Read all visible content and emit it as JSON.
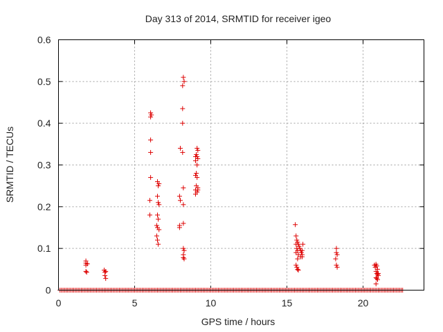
{
  "chart_data": {
    "type": "scatter",
    "title": "Day 313 of 2014, SRMTID for receiver igeo",
    "xlabel": "GPS time / hours",
    "ylabel": "SRMTID / TECUs",
    "xlim": [
      0,
      24
    ],
    "ylim": [
      0,
      0.6
    ],
    "x_ticks": [
      0,
      5,
      10,
      15,
      20
    ],
    "x_tick_labels": [
      "0",
      "5",
      "10",
      "15",
      "20"
    ],
    "y_ticks": [
      0,
      0.1,
      0.2,
      0.3,
      0.4,
      0.5,
      0.6
    ],
    "y_tick_labels": [
      "0",
      "0.1",
      "0.2",
      "0.3",
      "0.4",
      "0.5",
      "0.6"
    ],
    "grid": true,
    "marker": "+",
    "color": "#dd0000",
    "baseline": {
      "x_start": 0.1,
      "x_end": 22.6,
      "step": 0.1,
      "y": 0
    },
    "series": [
      {
        "name": "SRMTID",
        "points": [
          [
            1.8,
            0.07
          ],
          [
            1.8,
            0.065
          ],
          [
            1.8,
            0.06
          ],
          [
            1.8,
            0.045
          ],
          [
            1.85,
            0.043
          ],
          [
            1.9,
            0.063
          ],
          [
            3.0,
            0.048
          ],
          [
            3.05,
            0.043
          ],
          [
            3.05,
            0.035
          ],
          [
            3.1,
            0.028
          ],
          [
            3.1,
            0.045
          ],
          [
            6.05,
            0.425
          ],
          [
            6.05,
            0.415
          ],
          [
            6.1,
            0.42
          ],
          [
            6.05,
            0.36
          ],
          [
            6.05,
            0.33
          ],
          [
            6.05,
            0.27
          ],
          [
            6.0,
            0.215
          ],
          [
            6.0,
            0.18
          ],
          [
            6.5,
            0.26
          ],
          [
            6.55,
            0.25
          ],
          [
            6.6,
            0.255
          ],
          [
            6.5,
            0.225
          ],
          [
            6.55,
            0.21
          ],
          [
            6.6,
            0.205
          ],
          [
            6.5,
            0.18
          ],
          [
            6.55,
            0.17
          ],
          [
            6.45,
            0.155
          ],
          [
            6.5,
            0.15
          ],
          [
            6.6,
            0.145
          ],
          [
            6.45,
            0.13
          ],
          [
            6.5,
            0.12
          ],
          [
            6.55,
            0.11
          ],
          [
            8.2,
            0.51
          ],
          [
            8.25,
            0.5
          ],
          [
            8.15,
            0.49
          ],
          [
            8.15,
            0.435
          ],
          [
            8.15,
            0.4
          ],
          [
            8.0,
            0.34
          ],
          [
            8.15,
            0.33
          ],
          [
            8.2,
            0.245
          ],
          [
            7.95,
            0.225
          ],
          [
            8.0,
            0.215
          ],
          [
            8.2,
            0.205
          ],
          [
            8.2,
            0.16
          ],
          [
            7.95,
            0.155
          ],
          [
            7.95,
            0.15
          ],
          [
            8.2,
            0.1
          ],
          [
            8.25,
            0.095
          ],
          [
            8.2,
            0.085
          ],
          [
            8.2,
            0.078
          ],
          [
            8.25,
            0.075
          ],
          [
            9.1,
            0.34
          ],
          [
            9.15,
            0.335
          ],
          [
            9.0,
            0.32
          ],
          [
            9.05,
            0.325
          ],
          [
            9.1,
            0.32
          ],
          [
            9.15,
            0.315
          ],
          [
            9.0,
            0.31
          ],
          [
            9.1,
            0.3
          ],
          [
            9.05,
            0.28
          ],
          [
            9.0,
            0.275
          ],
          [
            9.1,
            0.27
          ],
          [
            9.05,
            0.25
          ],
          [
            9.15,
            0.245
          ],
          [
            9.0,
            0.24
          ],
          [
            9.1,
            0.235
          ],
          [
            9.0,
            0.23
          ],
          [
            9.15,
            0.24
          ],
          [
            15.55,
            0.157
          ],
          [
            15.6,
            0.13
          ],
          [
            15.65,
            0.12
          ],
          [
            15.7,
            0.115
          ],
          [
            15.6,
            0.11
          ],
          [
            15.75,
            0.11
          ],
          [
            15.8,
            0.105
          ],
          [
            15.65,
            0.1
          ],
          [
            15.7,
            0.095
          ],
          [
            15.85,
            0.1
          ],
          [
            15.9,
            0.095
          ],
          [
            15.6,
            0.09
          ],
          [
            15.75,
            0.085
          ],
          [
            15.95,
            0.09
          ],
          [
            16.0,
            0.095
          ],
          [
            16.05,
            0.11
          ],
          [
            16.0,
            0.085
          ],
          [
            15.7,
            0.075
          ],
          [
            15.9,
            0.08
          ],
          [
            16.0,
            0.08
          ],
          [
            15.6,
            0.06
          ],
          [
            15.65,
            0.055
          ],
          [
            15.7,
            0.05
          ],
          [
            15.75,
            0.048
          ],
          [
            18.25,
            0.1
          ],
          [
            18.25,
            0.09
          ],
          [
            18.3,
            0.085
          ],
          [
            18.2,
            0.075
          ],
          [
            18.25,
            0.06
          ],
          [
            18.3,
            0.055
          ],
          [
            20.75,
            0.06
          ],
          [
            20.8,
            0.055
          ],
          [
            20.85,
            0.062
          ],
          [
            20.9,
            0.058
          ],
          [
            20.95,
            0.05
          ],
          [
            20.85,
            0.045
          ],
          [
            20.9,
            0.04
          ],
          [
            20.95,
            0.038
          ],
          [
            21.0,
            0.035
          ],
          [
            20.85,
            0.03
          ],
          [
            20.9,
            0.028
          ],
          [
            21.0,
            0.04
          ],
          [
            20.95,
            0.025
          ],
          [
            20.85,
            0.015
          ]
        ]
      }
    ]
  }
}
